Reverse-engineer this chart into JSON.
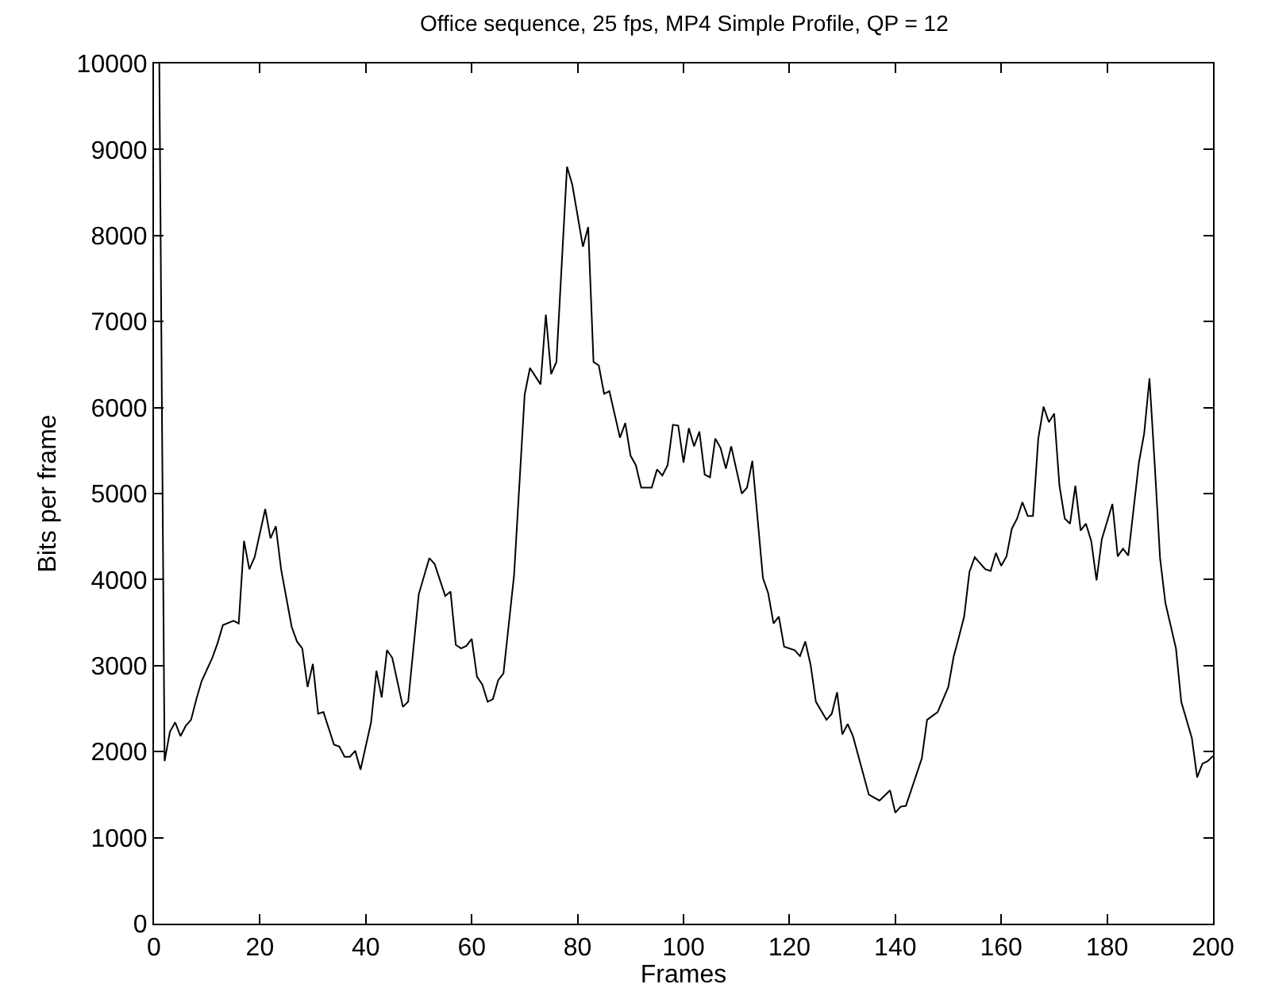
{
  "chart_data": {
    "type": "line",
    "title": "Office sequence, 25 fps, MP4 Simple Profile, QP = 12",
    "xlabel": "Frames",
    "ylabel": "Bits per frame",
    "x": [
      1,
      2,
      3,
      4,
      5,
      6,
      7,
      8,
      9,
      11,
      12,
      13,
      15,
      16,
      17,
      18,
      19,
      21,
      22,
      23,
      24,
      26,
      27,
      28,
      29,
      30,
      31,
      32,
      34,
      35,
      36,
      37,
      38,
      39,
      41,
      42,
      43,
      44,
      45,
      47,
      48,
      50,
      52,
      53,
      55,
      56,
      57,
      58,
      59,
      60,
      61,
      62,
      63,
      64,
      65,
      66,
      68,
      70,
      71,
      73,
      74,
      75,
      76,
      78,
      79,
      81,
      82,
      83,
      84,
      85,
      86,
      88,
      89,
      90,
      91,
      92,
      94,
      95,
      96,
      97,
      98,
      99,
      100,
      101,
      102,
      103,
      104,
      105,
      106,
      107,
      108,
      109,
      111,
      112,
      113,
      115,
      116,
      117,
      118,
      119,
      121,
      122,
      123,
      124,
      125,
      127,
      128,
      129,
      130,
      131,
      132,
      135,
      137,
      139,
      140,
      141,
      142,
      145,
      146,
      148,
      150,
      151,
      152,
      153,
      154,
      155,
      157,
      158,
      159,
      160,
      161,
      162,
      163,
      164,
      165,
      166,
      167,
      168,
      169,
      170,
      171,
      172,
      173,
      174,
      175,
      176,
      177,
      178,
      179,
      181,
      182,
      183,
      184,
      186,
      187,
      188,
      189,
      190,
      191,
      193,
      194,
      196,
      197,
      198,
      199,
      200
    ],
    "values": [
      10000,
      1890,
      2230,
      2340,
      2180,
      2300,
      2370,
      2610,
      2820,
      3090,
      3260,
      3470,
      3520,
      3490,
      4450,
      4120,
      4260,
      4820,
      4480,
      4620,
      4120,
      3450,
      3280,
      3200,
      2750,
      3020,
      2440,
      2460,
      2080,
      2060,
      1940,
      1940,
      2010,
      1790,
      2340,
      2940,
      2630,
      3180,
      3090,
      2520,
      2580,
      3830,
      4250,
      4180,
      3810,
      3860,
      3240,
      3200,
      3230,
      3310,
      2870,
      2780,
      2580,
      2610,
      2830,
      2910,
      4050,
      6150,
      6460,
      6270,
      7080,
      6390,
      6530,
      8800,
      8590,
      7870,
      8100,
      6530,
      6490,
      6160,
      6190,
      5650,
      5820,
      5440,
      5330,
      5070,
      5070,
      5280,
      5210,
      5330,
      5800,
      5790,
      5360,
      5760,
      5550,
      5720,
      5220,
      5190,
      5640,
      5530,
      5290,
      5550,
      5000,
      5070,
      5380,
      4020,
      3840,
      3490,
      3570,
      3220,
      3180,
      3110,
      3280,
      3010,
      2580,
      2370,
      2440,
      2690,
      2200,
      2320,
      2180,
      1500,
      1430,
      1550,
      1290,
      1360,
      1370,
      1920,
      2370,
      2460,
      2750,
      3100,
      3330,
      3570,
      4090,
      4260,
      4120,
      4100,
      4310,
      4160,
      4270,
      4590,
      4710,
      4900,
      4740,
      4740,
      5640,
      6010,
      5830,
      5930,
      5090,
      4710,
      4650,
      5090,
      4570,
      4650,
      4450,
      3990,
      4470,
      4880,
      4270,
      4360,
      4280,
      5360,
      5700,
      6340,
      5330,
      4250,
      3730,
      3200,
      2580,
      2160,
      1700,
      1860,
      1890,
      1950
    ],
    "color": "#000000",
    "xlim": [
      0,
      200
    ],
    "ylim": [
      0,
      10000
    ],
    "xticks": [
      0,
      20,
      40,
      60,
      80,
      100,
      120,
      140,
      160,
      180,
      200
    ],
    "yticks": [
      0,
      1000,
      2000,
      3000,
      4000,
      5000,
      6000,
      7000,
      8000,
      9000,
      10000
    ],
    "marker": "none",
    "line_style": "solid"
  }
}
